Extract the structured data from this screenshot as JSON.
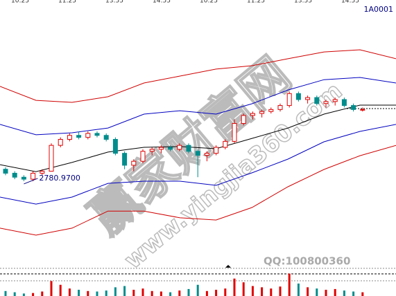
{
  "chart_data": {
    "type": "candlestick",
    "symbol": "1A0001",
    "time_labels": [
      "10:25",
      "11:25",
      "13:55",
      "14:55",
      "10:25",
      "11:25",
      "13:55",
      "14:55"
    ],
    "annotation": "2780.9700",
    "contact": "QQ:100800360",
    "watermark": [
      "赢家财富网",
      "www.yingjia360.com"
    ],
    "ylim": [
      2740,
      2872
    ],
    "up_color": "#e00000",
    "down_color": "#008c8c",
    "candles": [
      [
        2787,
        2788,
        2784,
        2785
      ],
      [
        2785,
        2786,
        2782,
        2783
      ],
      [
        2783,
        2784,
        2781,
        2782
      ],
      [
        2782,
        2786,
        2781,
        2785
      ],
      [
        2785,
        2787,
        2784,
        2786
      ],
      [
        2786,
        2800,
        2786,
        2799
      ],
      [
        2799,
        2803,
        2798,
        2802
      ],
      [
        2802,
        2805,
        2801,
        2804
      ],
      [
        2804,
        2806,
        2802,
        2803
      ],
      [
        2803,
        2806,
        2802,
        2805
      ],
      [
        2805,
        2806,
        2803,
        2804
      ],
      [
        2804,
        2805,
        2801,
        2802
      ],
      [
        2802,
        2803,
        2794,
        2795
      ],
      [
        2795,
        2796,
        2787,
        2789
      ],
      [
        2789,
        2792,
        2786,
        2791
      ],
      [
        2791,
        2797,
        2790,
        2796
      ],
      [
        2796,
        2798,
        2794,
        2797
      ],
      [
        2797,
        2799,
        2795,
        2798
      ],
      [
        2798,
        2799,
        2796,
        2797
      ],
      [
        2797,
        2800,
        2796,
        2799
      ],
      [
        2799,
        2800,
        2795,
        2796
      ],
      [
        2796,
        2797,
        2783,
        2794
      ],
      [
        2794,
        2796,
        2791,
        2795
      ],
      [
        2795,
        2799,
        2794,
        2798
      ],
      [
        2798,
        2802,
        2797,
        2801
      ],
      [
        2801,
        2812,
        2800,
        2810
      ],
      [
        2810,
        2815,
        2809,
        2814
      ],
      [
        2814,
        2816,
        2812,
        2815
      ],
      [
        2815,
        2817,
        2813,
        2816
      ],
      [
        2816,
        2818,
        2815,
        2817
      ],
      [
        2817,
        2820,
        2816,
        2819
      ],
      [
        2819,
        2826,
        2818,
        2825
      ],
      [
        2825,
        2826,
        2821,
        2822
      ],
      [
        2822,
        2824,
        2820,
        2823
      ],
      [
        2823,
        2824,
        2819,
        2820
      ],
      [
        2820,
        2822,
        2818,
        2821
      ],
      [
        2821,
        2823,
        2819,
        2822
      ],
      [
        2822,
        2823,
        2818,
        2819
      ],
      [
        2819,
        2820,
        2816,
        2817
      ],
      [
        2817,
        2818,
        2816,
        2817
      ]
    ],
    "volume_ylim": [
      0,
      100
    ],
    "volumes": [
      20,
      15,
      10,
      12,
      18,
      60,
      45,
      30,
      25,
      20,
      18,
      22,
      35,
      40,
      25,
      30,
      20,
      18,
      15,
      22,
      28,
      45,
      20,
      25,
      30,
      70,
      55,
      40,
      35,
      30,
      38,
      90,
      50,
      35,
      30,
      25,
      28,
      22,
      18,
      15
    ],
    "lines": [
      {
        "color": "#d00000",
        "values": [
          2828.6,
          2821.6,
          2820.6,
          2823.4,
          2830.3,
          2833.8,
          2837.3,
          2839,
          2842.5,
          2845.9,
          2847,
          2842.5
        ]
      },
      {
        "color": "#0000c0",
        "values": [
          2809.5,
          2804.3,
          2805.3,
          2807.7,
          2814.7,
          2816.4,
          2814.7,
          2819.9,
          2826.8,
          2832,
          2833.1,
          2830.3
        ]
      },
      {
        "color": "#000000",
        "values": [
          2789.3,
          2785.8,
          2790.4,
          2795.6,
          2798,
          2798.4,
          2797.3,
          2802.5,
          2807.7,
          2814.7,
          2819.2,
          2819.2
        ]
      },
      {
        "color": "#0000c0",
        "values": [
          2773,
          2769.5,
          2773,
          2779.9,
          2781,
          2781,
          2778.9,
          2785.2,
          2792.1,
          2800.8,
          2806,
          2809.5
        ]
      },
      {
        "color": "#d00000",
        "values": [
          2757.4,
          2753.9,
          2757.4,
          2766,
          2766,
          2762.6,
          2761.5,
          2767.8,
          2778.2,
          2786.9,
          2793.8,
          2799
        ]
      }
    ]
  }
}
